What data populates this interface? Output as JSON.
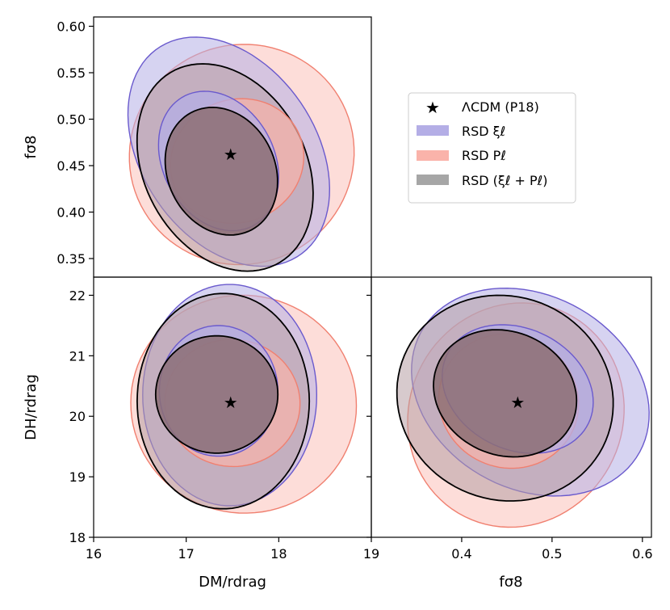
{
  "chart_data": {
    "type": "corner-contour",
    "legend": {
      "placement": "upper-right-of-grid",
      "entries": [
        {
          "key": "lcdm",
          "text": "ΛCDM (P18)",
          "marker": "star",
          "color": "#000000"
        },
        {
          "key": "xi",
          "text": "RSD ξℓ",
          "color": "#b4aee6"
        },
        {
          "key": "pl",
          "text": "RSD Pℓ",
          "color": "#fab3aa"
        },
        {
          "key": "comb",
          "text": "RSD (ξℓ + Pℓ)",
          "color": "#a6a6a6"
        }
      ]
    },
    "parameters": {
      "dm": {
        "label": "DM/rdrag"
      },
      "fs8": {
        "label": "fσ8"
      },
      "dh": {
        "label": "DH/rdrag"
      }
    },
    "axis_labels": {
      "left_top": "fσ8",
      "left_bottom": "DH/rdrag",
      "bottom_left": "DM/rdrag",
      "bottom_right": "fσ8"
    },
    "ticks": {
      "dm": [
        "16",
        "17",
        "18",
        "19"
      ],
      "fs8_y": [
        "0.35",
        "0.40",
        "0.45",
        "0.50",
        "0.55",
        "0.60"
      ],
      "dh": [
        "18",
        "19",
        "20",
        "21",
        "22"
      ],
      "fs8_x": [
        "0.4",
        "0.5",
        "0.6"
      ]
    },
    "ranges": {
      "dm": [
        16.0,
        19.0
      ],
      "fs8_y": [
        0.33,
        0.61
      ],
      "dh": [
        18.0,
        22.3
      ],
      "fs8_x": [
        0.3,
        0.61
      ]
    },
    "lcdm_point": {
      "dm": 17.48,
      "fs8": 0.462,
      "dh": 20.23
    },
    "colors": {
      "xi_fill": "#b4aee6",
      "xi_edge": "#6a5acd",
      "pl_fill": "#fab3aa",
      "pl_edge": "#f08070",
      "comb_fill": "#8c6e74",
      "comb_edge": "#000000",
      "comb_outer_fill": "#b79ea4"
    },
    "panels": [
      {
        "name": "dm-fs8",
        "x": "dm",
        "y": "fs8_y",
        "contours": [
          {
            "series": "pl",
            "level": 2,
            "cx": 17.6,
            "cy": 0.462,
            "rx": 1.22,
            "ry": 0.118,
            "rot": -0.4
          },
          {
            "series": "xi",
            "level": 2,
            "cx": 17.46,
            "cy": 0.465,
            "rx": 0.94,
            "ry": 0.135,
            "rot": -0.6
          },
          {
            "series": "comb",
            "level": 2,
            "cx": 17.42,
            "cy": 0.448,
            "rx": 0.87,
            "ry": 0.118,
            "rot": -0.5
          },
          {
            "series": "pl",
            "level": 1,
            "cx": 17.55,
            "cy": 0.455,
            "rx": 0.73,
            "ry": 0.066,
            "rot": -0.4
          },
          {
            "series": "xi",
            "level": 1,
            "cx": 17.35,
            "cy": 0.455,
            "rx": 0.6,
            "ry": 0.079,
            "rot": -0.5
          },
          {
            "series": "comb",
            "level": 1,
            "cx": 17.38,
            "cy": 0.444,
            "rx": 0.58,
            "ry": 0.071,
            "rot": -0.45
          }
        ]
      },
      {
        "name": "dm-dh",
        "x": "dm",
        "y": "dh",
        "contours": [
          {
            "series": "pl",
            "level": 2,
            "cx": 17.62,
            "cy": 20.2,
            "rx": 1.22,
            "ry": 1.8,
            "rot": 0.15
          },
          {
            "series": "xi",
            "level": 2,
            "cx": 17.47,
            "cy": 20.35,
            "rx": 0.94,
            "ry": 1.83,
            "rot": 0
          },
          {
            "series": "comb",
            "level": 2,
            "cx": 17.4,
            "cy": 20.25,
            "rx": 0.93,
            "ry": 1.78,
            "rot": 0
          },
          {
            "series": "pl",
            "level": 1,
            "cx": 17.5,
            "cy": 20.22,
            "rx": 0.73,
            "ry": 1.05,
            "rot": 0.1
          },
          {
            "series": "xi",
            "level": 1,
            "cx": 17.35,
            "cy": 20.42,
            "rx": 0.64,
            "ry": 1.08,
            "rot": 0
          },
          {
            "series": "comb",
            "level": 1,
            "cx": 17.33,
            "cy": 20.36,
            "rx": 0.66,
            "ry": 0.97,
            "rot": 0
          }
        ]
      },
      {
        "name": "fs8-dh",
        "x": "fs8_x",
        "y": "dh",
        "contours": [
          {
            "series": "pl",
            "level": 2,
            "cx": 0.46,
            "cy": 20.02,
            "rx": 0.118,
            "ry": 1.88,
            "rot": 0.5
          },
          {
            "series": "xi",
            "level": 2,
            "cx": 0.476,
            "cy": 20.4,
            "rx": 0.138,
            "ry": 1.6,
            "rot": 0.5
          },
          {
            "series": "comb",
            "level": 2,
            "cx": 0.448,
            "cy": 20.3,
            "rx": 0.121,
            "ry": 1.68,
            "rot": 0.4
          },
          {
            "series": "pl",
            "level": 1,
            "cx": 0.452,
            "cy": 20.25,
            "rx": 0.078,
            "ry": 1.1,
            "rot": 0.4
          },
          {
            "series": "xi",
            "level": 1,
            "cx": 0.462,
            "cy": 20.45,
            "rx": 0.087,
            "ry": 1.0,
            "rot": 0.45
          },
          {
            "series": "comb",
            "level": 1,
            "cx": 0.448,
            "cy": 20.38,
            "rx": 0.081,
            "ry": 1.02,
            "rot": 0.4
          }
        ]
      }
    ]
  }
}
